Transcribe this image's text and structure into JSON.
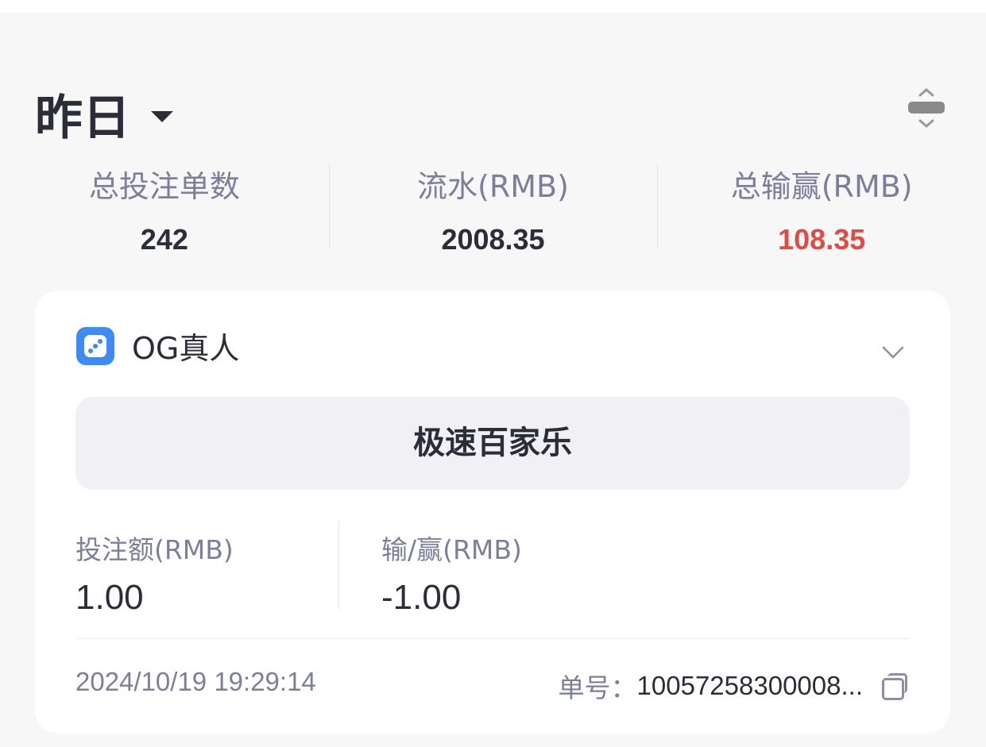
{
  "header": {
    "period": "昨日"
  },
  "stats": [
    {
      "label": "总投注单数",
      "value": "242"
    },
    {
      "label": "流水(RMB)",
      "value": "2008.35"
    },
    {
      "label": "总输赢(RMB)",
      "value": "108.35",
      "color": "#e04b44"
    }
  ],
  "record": {
    "provider": "OG真人",
    "provider_icon": "dice-icon",
    "game": "极速百家乐",
    "bet_label": "投注额(RMB)",
    "bet_value": "1.00",
    "win_label": "输/赢(RMB)",
    "win_value": "-1.00",
    "time": "2024/10/19 19:29:14",
    "order_label": "单号：",
    "order_value": "10057258300008..."
  }
}
